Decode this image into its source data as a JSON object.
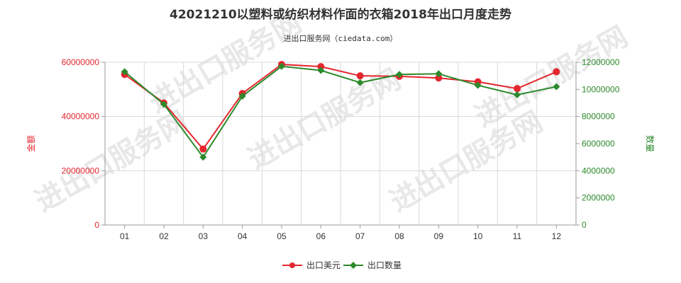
{
  "chart_data": {
    "type": "line",
    "title": "42021210以塑料或纺织材料作面的衣箱2018年出口月度走势",
    "subtitle": "进出口服务网（ciedata.com）",
    "categories": [
      "01",
      "02",
      "03",
      "04",
      "05",
      "06",
      "07",
      "08",
      "09",
      "10",
      "11",
      "12"
    ],
    "y_left": {
      "label": "金额",
      "range": [
        0,
        60000000
      ],
      "ticks": [
        "0",
        "20000000",
        "40000000",
        "60000000"
      ],
      "color": "#e3262e"
    },
    "y_right": {
      "label": "数量",
      "range": [
        0,
        12000000
      ],
      "ticks": [
        "0",
        "2000000",
        "4000000",
        "6000000",
        "8000000",
        "10000000",
        "12000000"
      ],
      "color": "#2c8a2c"
    },
    "series": [
      {
        "name": "出口美元",
        "axis": "left",
        "color": "#e3262e",
        "marker": "circle",
        "values": [
          55500000,
          45000000,
          28000000,
          48500000,
          59200000,
          58400000,
          55000000,
          54800000,
          54200000,
          52800000,
          50300000,
          56500000
        ]
      },
      {
        "name": "出口数量",
        "axis": "right",
        "color": "#2c8a2c",
        "marker": "diamond",
        "values": [
          11300000,
          8900000,
          5000000,
          9500000,
          11700000,
          11400000,
          10500000,
          11100000,
          11150000,
          10300000,
          9600000,
          10200000
        ]
      }
    ],
    "grid": true,
    "legend": "bottom-center"
  },
  "watermark": "进出口服务网"
}
